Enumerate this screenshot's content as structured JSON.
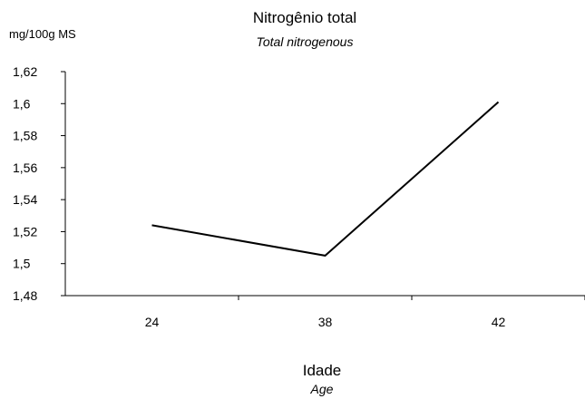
{
  "chart_data": {
    "type": "line",
    "title": "Nitrogênio total",
    "subtitle": "Total nitrogenous",
    "ylabel": "mg/100g MS",
    "xlabel": "Idade",
    "xlabel_sub": "Age",
    "categories": [
      "24",
      "38",
      "42"
    ],
    "series": [
      {
        "values": [
          1.524,
          1.505,
          1.601
        ]
      }
    ],
    "ylim": [
      1.48,
      1.62
    ],
    "yticks": [
      "1,62",
      "1,6",
      "1,58",
      "1,56",
      "1,54",
      "1,52",
      "1,5",
      "1,48"
    ],
    "grid": false,
    "line_color": "#000000"
  }
}
